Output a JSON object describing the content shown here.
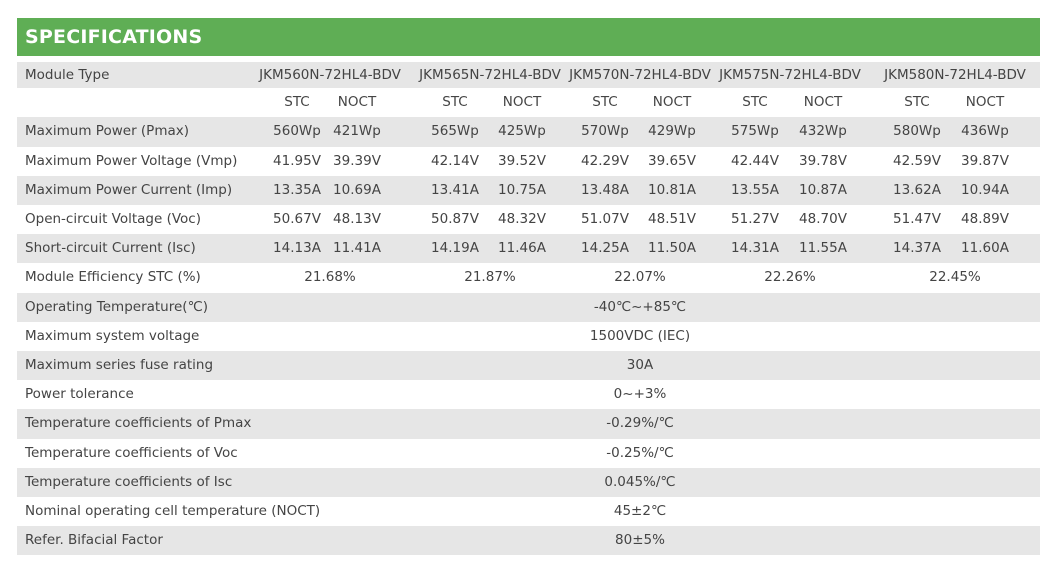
{
  "title": "SPECIFICATIONS",
  "header": {
    "label": "Module Type",
    "models": [
      "JKM560N-72HL4-BDV",
      "JKM565N-72HL4-BDV",
      "JKM570N-72HL4-BDV",
      "JKM575N-72HL4-BDV",
      "JKM580N-72HL4-BDV"
    ]
  },
  "subheader": [
    "STC",
    "NOCT",
    "STC",
    "NOCT",
    "STC",
    "NOCT",
    "STC",
    "NOCT",
    "STC",
    "NOCT"
  ],
  "rows": [
    {
      "label": "Maximum Power (Pmax)",
      "cells": [
        "560Wp",
        "421Wp",
        "565Wp",
        "425Wp",
        "570Wp",
        "429Wp",
        "575Wp",
        "432Wp",
        "580Wp",
        "436Wp"
      ]
    },
    {
      "label": "Maximum Power Voltage (Vmp)",
      "cells": [
        "41.95V",
        "39.39V",
        "42.14V",
        "39.52V",
        "42.29V",
        "39.65V",
        "42.44V",
        "39.78V",
        "42.59V",
        "39.87V"
      ]
    },
    {
      "label": "Maximum Power Current (Imp)",
      "cells": [
        "13.35A",
        "10.69A",
        "13.41A",
        "10.75A",
        "13.48A",
        "10.81A",
        "13.55A",
        "10.87A",
        "13.62A",
        "10.94A"
      ]
    },
    {
      "label": "Open-circuit Voltage (Voc)",
      "cells": [
        "50.67V",
        "48.13V",
        "50.87V",
        "48.32V",
        "51.07V",
        "48.51V",
        "51.27V",
        "48.70V",
        "51.47V",
        "48.89V"
      ]
    },
    {
      "label": "Short-circuit Current (Isc)",
      "cells": [
        "14.13A",
        "11.41A",
        "14.19A",
        "11.46A",
        "14.25A",
        "11.50A",
        "14.31A",
        "11.55A",
        "14.37A",
        "11.60A"
      ]
    },
    {
      "label": "Module Efficiency STC (%)",
      "cells": [
        "21.68%",
        "21.87%",
        "22.07%",
        "22.26%",
        "22.45%"
      ]
    },
    {
      "label": "Operating Temperature(℃)",
      "cells": [
        "-40℃~+85℃"
      ]
    },
    {
      "label": "Maximum system voltage",
      "cells": [
        "1500VDC (IEC)"
      ]
    },
    {
      "label": "Maximum series fuse rating",
      "cells": [
        "30A"
      ]
    },
    {
      "label": "Power tolerance",
      "cells": [
        "0~+3%"
      ]
    },
    {
      "label": "Temperature coefficients of Pmax",
      "cells": [
        "-0.29%/℃"
      ]
    },
    {
      "label": "Temperature coefficients of Voc",
      "cells": [
        "-0.25%/℃"
      ]
    },
    {
      "label": "Temperature coefficients of Isc",
      "cells": [
        "0.045%/℃"
      ]
    },
    {
      "label": "Nominal operating cell temperature  (NOCT)",
      "cells": [
        "45±2℃"
      ]
    },
    {
      "label": "Refer. Bifacial Factor",
      "cells": [
        "80±5%"
      ]
    }
  ]
}
